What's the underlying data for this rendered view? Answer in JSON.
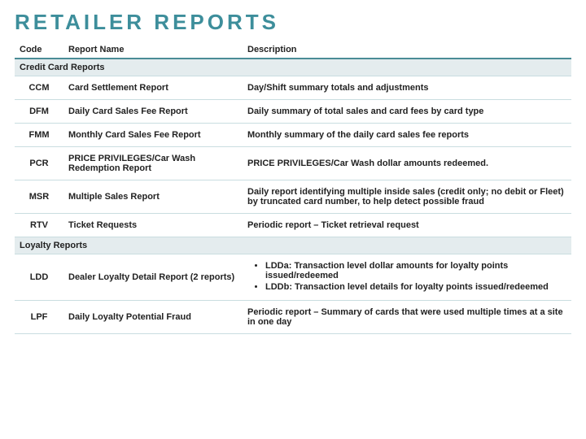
{
  "title": "RETAILER REPORTS",
  "title_color": "#3d8e9b",
  "columns": {
    "code": "Code",
    "name": "Report Name",
    "desc": "Description"
  },
  "header_border_color": "#4a8c96",
  "row_border_color": "#c9dde0",
  "section_bg": "#e4ecee",
  "sections": [
    {
      "label": "Credit Card Reports",
      "rows": [
        {
          "code": "CCM",
          "name": "Card Settlement Report",
          "desc": "Day/Shift summary totals and adjustments"
        },
        {
          "code": "DFM",
          "name": "Daily Card Sales Fee Report",
          "desc": "Daily summary of total sales and card fees by card type"
        },
        {
          "code": "FMM",
          "name": "Monthly Card Sales Fee Report",
          "desc": "Monthly summary of the daily card sales fee reports"
        },
        {
          "code": "PCR",
          "name": "PRICE PRIVILEGES/Car Wash Redemption Report",
          "desc": "PRICE PRIVILEGES/Car Wash dollar amounts redeemed."
        },
        {
          "code": "MSR",
          "name": "Multiple Sales Report",
          "desc": "Daily report identifying multiple inside sales (credit only; no debit or Fleet) by truncated card number, to help detect possible fraud"
        },
        {
          "code": "RTV",
          "name": "Ticket Requests",
          "desc": "Periodic report – Ticket retrieval request"
        }
      ]
    },
    {
      "label": "Loyalty Reports",
      "rows": [
        {
          "code": "LDD",
          "name": "Dealer Loyalty Detail Report (2 reports)",
          "bullets": [
            "LDDa: Transaction level dollar amounts for loyalty points issued/redeemed",
            "LDDb: Transaction level details for loyalty points issued/redeemed"
          ]
        },
        {
          "code": "LPF",
          "name": "Daily Loyalty Potential Fraud",
          "desc": "Periodic report – Summary of cards that were used multiple times at a site in one day"
        }
      ]
    }
  ]
}
